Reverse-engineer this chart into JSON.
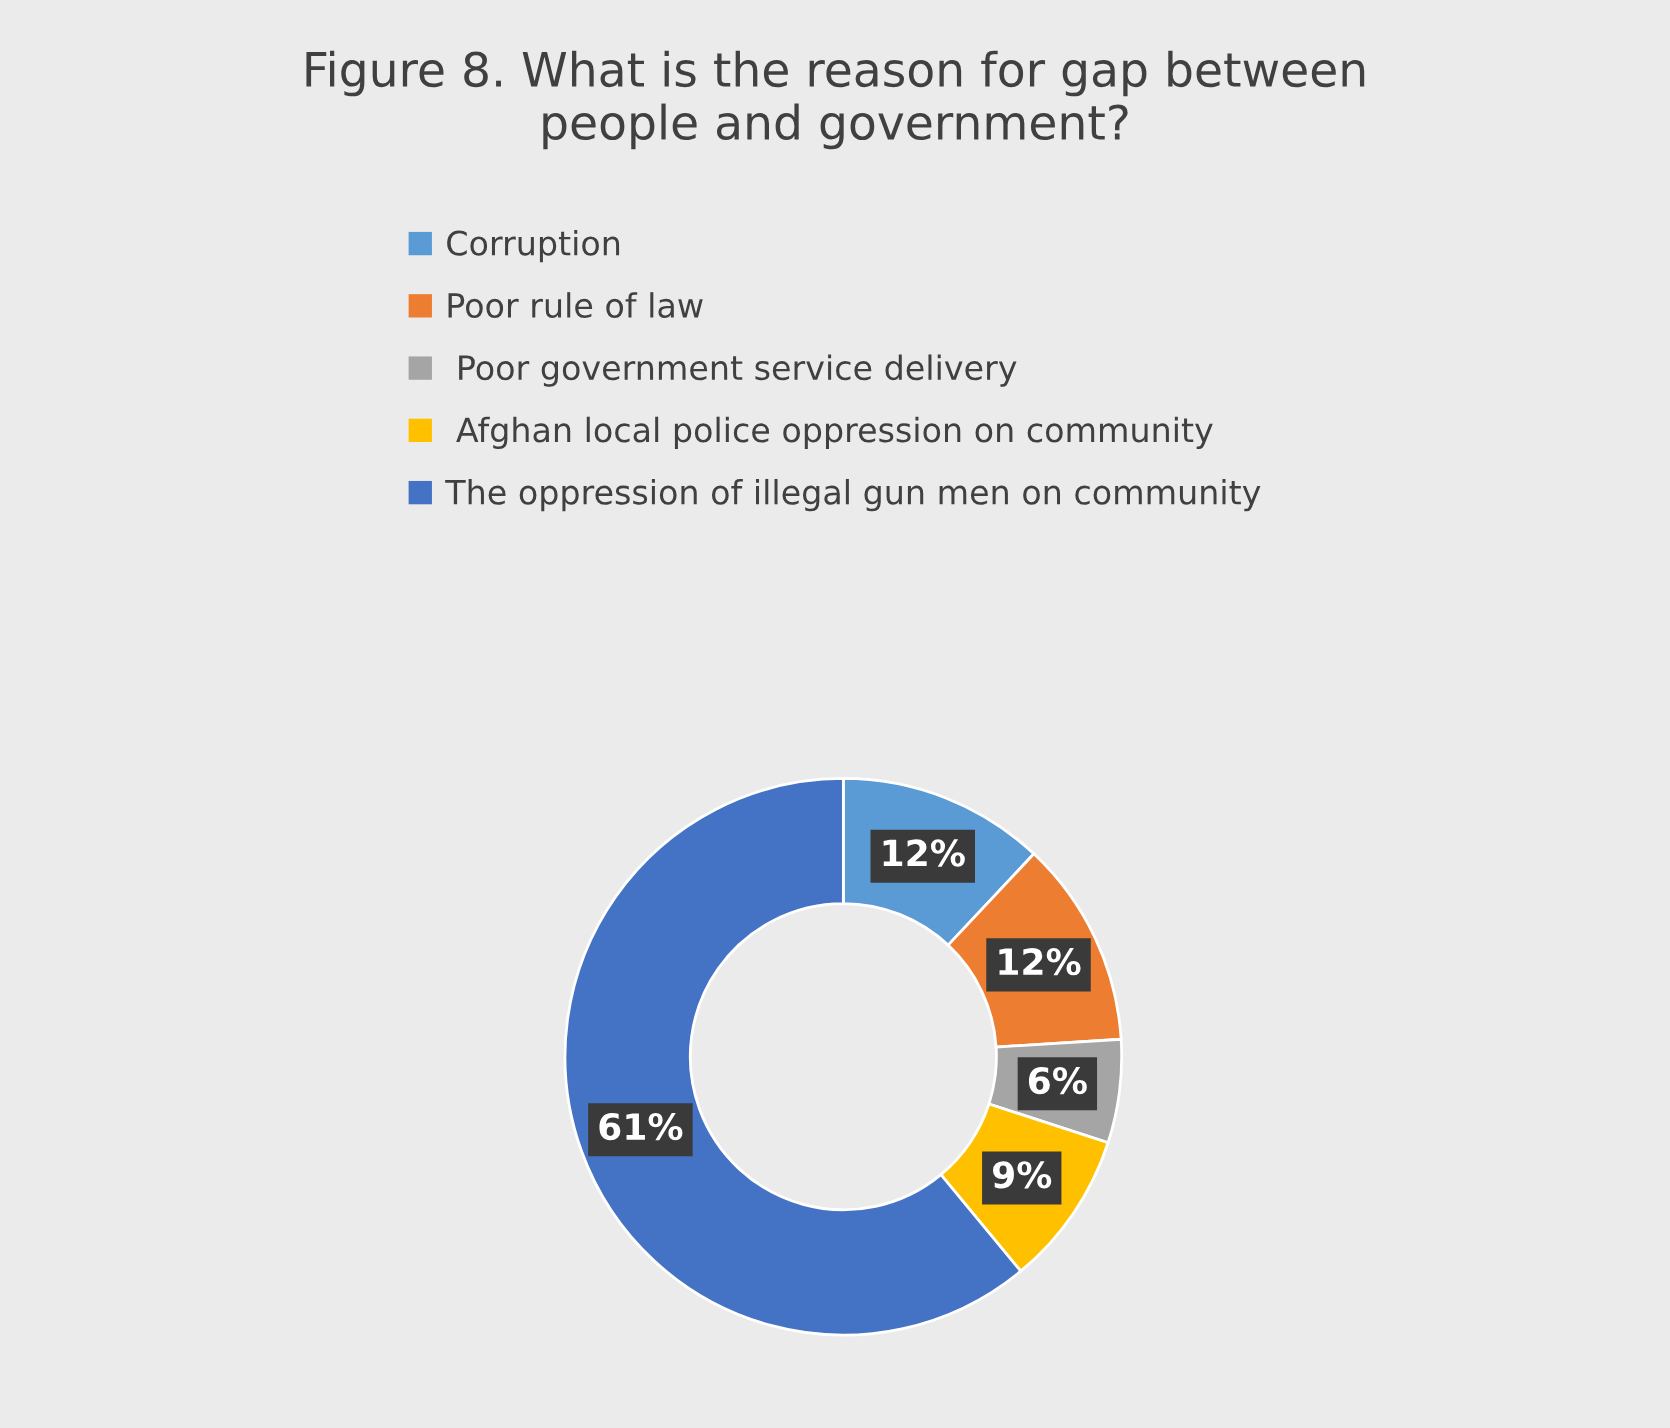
{
  "chart_data": {
    "type": "donut",
    "title": "Figure 8. What is the reason for gap between\npeople and government?",
    "categories": [
      "Corruption",
      "Poor rule of law",
      " Poor government service delivery",
      " Afghan local police oppression on community",
      "The oppression of illegal gun men on community"
    ],
    "values": [
      12,
      12,
      6,
      9,
      61
    ],
    "colors": [
      "#5b9bd5",
      "#ed7d31",
      "#a5a5a5",
      "#ffc000",
      "#4472c4"
    ],
    "value_labels": [
      "12%",
      "12%",
      "6%",
      "9%",
      "61%"
    ],
    "legend": "top"
  }
}
